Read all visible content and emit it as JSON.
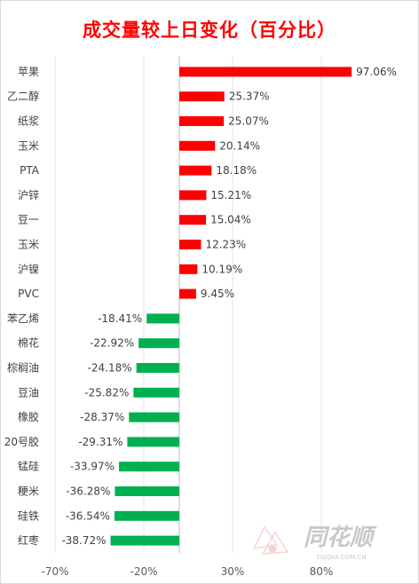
{
  "chart_data": {
    "type": "bar",
    "orientation": "horizontal",
    "title": "成交量较上日变化（百分比）",
    "categories": [
      "苹果",
      "乙二醇",
      "纸浆",
      "玉米",
      "PTA",
      "沪锌",
      "豆一",
      "玉米",
      "沪镍",
      "PVC",
      "苯乙烯",
      "棉花",
      "棕榈油",
      "豆油",
      "橡胶",
      "20号胶",
      "锰硅",
      "粳米",
      "硅铁",
      "红枣"
    ],
    "values": [
      97.06,
      25.37,
      25.07,
      20.14,
      18.18,
      15.21,
      15.04,
      12.23,
      10.19,
      9.45,
      -18.41,
      -22.92,
      -24.18,
      -25.82,
      -28.37,
      -29.31,
      -33.97,
      -36.28,
      -36.54,
      -38.72
    ],
    "value_labels": [
      "97.06%",
      "25.37%",
      "25.07%",
      "20.14%",
      "18.18%",
      "15.21%",
      "15.04%",
      "12.23%",
      "10.19%",
      "9.45%",
      "-18.41%",
      "-22.92%",
      "-24.18%",
      "-25.82%",
      "-28.37%",
      "-29.31%",
      "-33.97%",
      "-36.28%",
      "-36.54%",
      "-38.72%"
    ],
    "xlim": [
      -70,
      130
    ],
    "x_ticks": [
      "-70%",
      "-20%",
      "30%",
      "80%"
    ],
    "x_tick_values": [
      -70,
      -20,
      30,
      80
    ],
    "colors": {
      "positive": "#ff0000",
      "negative": "#00b050",
      "title": "#ff0000"
    },
    "grid": "vertical"
  },
  "watermark": {
    "text": "同花顺",
    "subtext": "10JQKA.COM.CN"
  }
}
